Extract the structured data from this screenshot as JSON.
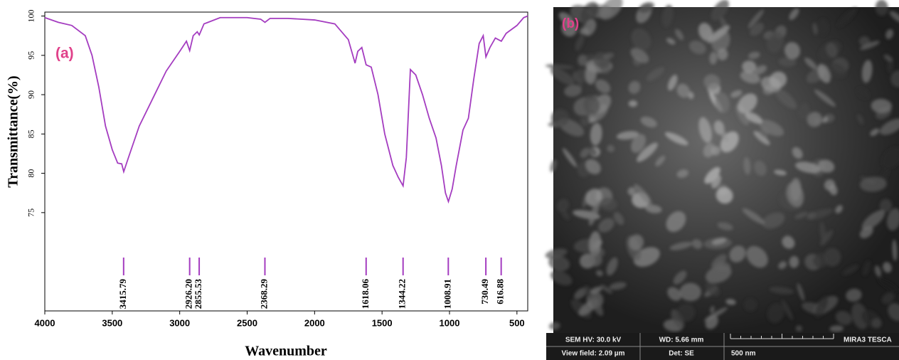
{
  "chart_data": {
    "type": "line",
    "panel_label": "(a)",
    "xlabel": "Wavenumber",
    "ylabel": "Transmittance(%)",
    "xlim": [
      4000,
      420
    ],
    "ylim": [
      62.5,
      100.5
    ],
    "xticks": [
      4000,
      3500,
      3000,
      2500,
      2000,
      1500,
      1000,
      500
    ],
    "yticks": [
      75,
      80,
      85,
      90,
      95,
      100
    ],
    "x": [
      4000,
      3900,
      3800,
      3700,
      3650,
      3600,
      3550,
      3500,
      3460,
      3430,
      3415,
      3380,
      3300,
      3200,
      3100,
      3000,
      2950,
      2926,
      2900,
      2870,
      2855,
      2820,
      2700,
      2500,
      2400,
      2368,
      2330,
      2200,
      2000,
      1850,
      1750,
      1700,
      1680,
      1650,
      1618,
      1580,
      1530,
      1480,
      1420,
      1380,
      1344,
      1320,
      1290,
      1250,
      1200,
      1150,
      1100,
      1060,
      1030,
      1008,
      980,
      950,
      900,
      860,
      820,
      780,
      750,
      730,
      700,
      660,
      616,
      580,
      500,
      450,
      420
    ],
    "series": [
      {
        "color": "#a43cc0",
        "values": [
          99.8,
          99.2,
          98.8,
          97.5,
          95,
          91,
          86,
          83,
          81.3,
          81.2,
          80.2,
          82,
          86,
          89.5,
          93,
          95.5,
          96.8,
          95.6,
          97.5,
          98,
          97.6,
          99,
          99.8,
          99.8,
          99.6,
          99.2,
          99.7,
          99.7,
          99.5,
          99,
          97,
          94,
          95.5,
          96,
          93.8,
          93.5,
          90,
          85,
          81,
          79.5,
          78.4,
          82,
          93.2,
          92.5,
          90,
          87,
          84.5,
          81,
          77.5,
          76.4,
          78,
          81,
          85.5,
          87,
          92,
          96.5,
          97.5,
          94.8,
          96,
          97.2,
          96.8,
          97.8,
          98.8,
          99.8,
          100
        ]
      }
    ],
    "annotations": [
      {
        "value": 3415.79,
        "label": "3415.79"
      },
      {
        "value": 2926.2,
        "label": "2926.20"
      },
      {
        "value": 2855.53,
        "label": "2855.53"
      },
      {
        "value": 2368.29,
        "label": "2368.29"
      },
      {
        "value": 1618.06,
        "label": "1618.06"
      },
      {
        "value": 1344.22,
        "label": "1344.22"
      },
      {
        "value": 1008.91,
        "label": "1008.91"
      },
      {
        "value": 730.49,
        "label": "730.49"
      },
      {
        "value": 616.88,
        "label": "616.88"
      }
    ],
    "annotation_color": "#a43cc0"
  },
  "image_panel": {
    "panel_label": "(b)",
    "info_bar": {
      "hv": "SEM HV: 30.0 kV",
      "wd": "WD: 5.66 mm",
      "instrument": "MIRA3 TESCA",
      "view_field": "View field: 2.09 µm",
      "detector": "Det: SE",
      "scale": "500 nm"
    }
  }
}
